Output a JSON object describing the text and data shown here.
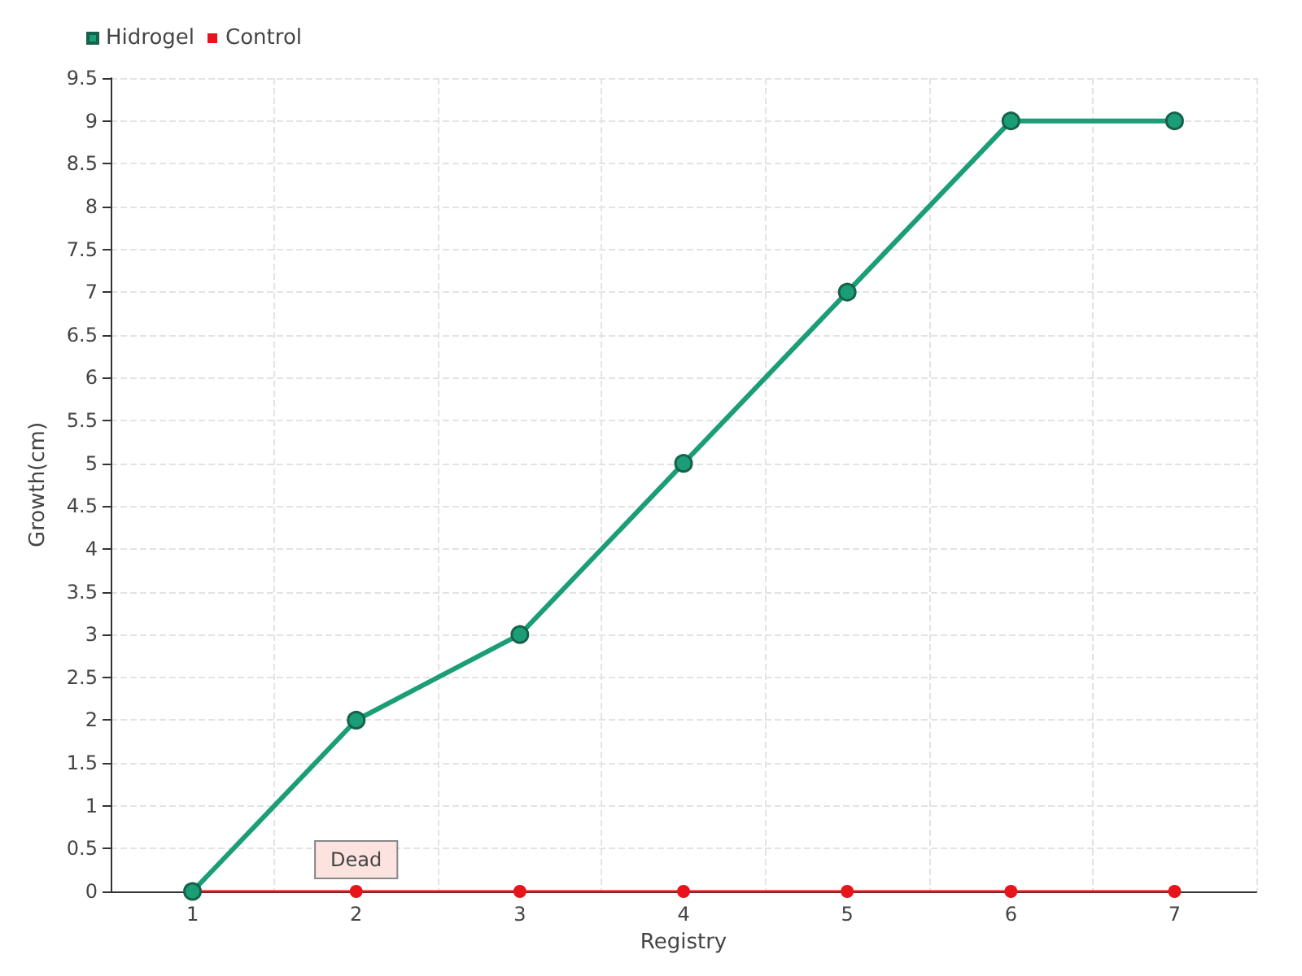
{
  "chart_data": {
    "type": "line",
    "xlabel": "Registry",
    "ylabel": "Growth(cm)",
    "categories": [
      "1",
      "2",
      "3",
      "4",
      "5",
      "6",
      "7"
    ],
    "series": [
      {
        "name": "Hidrogel",
        "color": "#1b9e77",
        "values": [
          0,
          2,
          3,
          5,
          7,
          9,
          9
        ]
      },
      {
        "name": "Control",
        "color": "#e8141c",
        "values": [
          0,
          0,
          0,
          0,
          0,
          0,
          0
        ]
      }
    ],
    "ylim": [
      0,
      9.5
    ],
    "yticks": [
      0,
      0.5,
      1,
      1.5,
      2,
      2.5,
      3,
      3.5,
      4,
      4.5,
      5,
      5.5,
      6,
      6.5,
      7,
      7.5,
      8,
      8.5,
      9,
      9.5
    ],
    "grid": true,
    "legend": "top left",
    "marker": "circle",
    "line_style": "solid",
    "annotations": [
      {
        "text": "Dead",
        "x": "2",
        "y": 0
      }
    ]
  }
}
